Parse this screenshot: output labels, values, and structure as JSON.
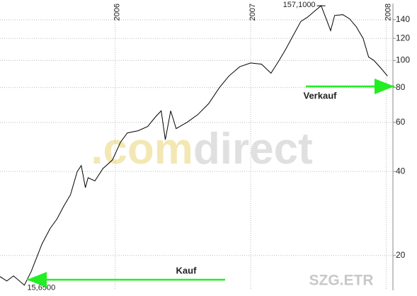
{
  "chart_data": {
    "type": "line",
    "x": [
      2005.15,
      2005.2,
      2005.25,
      2005.33,
      2005.38,
      2005.46,
      2005.52,
      2005.57,
      2005.62,
      2005.67,
      2005.72,
      2005.75,
      2005.78,
      2005.8,
      2005.85,
      2005.91,
      2005.98,
      2006.04,
      2006.09,
      2006.17,
      2006.24,
      2006.3,
      2006.34,
      2006.37,
      2006.41,
      2006.45,
      2006.53,
      2006.61,
      2006.69,
      2006.77,
      2006.84,
      2006.92,
      2007.0,
      2007.08,
      2007.15,
      2007.21,
      2007.26,
      2007.31,
      2007.37,
      2007.42,
      2007.47,
      2007.52,
      2007.56,
      2007.59,
      2007.62,
      2007.68,
      2007.73,
      2007.78,
      2007.83,
      2007.87,
      2007.91,
      2007.96,
      2008.01
    ],
    "values": [
      16.8,
      16.2,
      16.9,
      15.65,
      17.5,
      22,
      25,
      27,
      30,
      33,
      40,
      42,
      35,
      38,
      37,
      41,
      44,
      51,
      55,
      56,
      58,
      63,
      66,
      52,
      66,
      57,
      60,
      64,
      70,
      80,
      88,
      95,
      98,
      97,
      90,
      100,
      110,
      122,
      138,
      143,
      150,
      157.1,
      140,
      128,
      145,
      146,
      141,
      132,
      120,
      103,
      100,
      94,
      88
    ],
    "color": "#000000",
    "xlim": [
      2005.15,
      2008.05
    ],
    "xticks": [
      2006,
      2007,
      2008
    ],
    "ylim": [
      15,
      160
    ],
    "yticks": [
      20,
      40,
      60,
      80,
      100,
      120,
      140
    ],
    "log_scale": true,
    "grid": true,
    "annotations": [
      {
        "text": "157,1000",
        "x": 2007.52,
        "y": 157.1
      },
      {
        "text": "15,6500",
        "x": 2005.33,
        "y": 15.65
      }
    ],
    "signals": [
      {
        "text": "Kauf",
        "color": "#22ee22"
      },
      {
        "text": "Verkauf",
        "color": "#22ee22"
      }
    ],
    "watermark": [
      ".com",
      "direct"
    ],
    "symbol": "SZG.ETR"
  }
}
